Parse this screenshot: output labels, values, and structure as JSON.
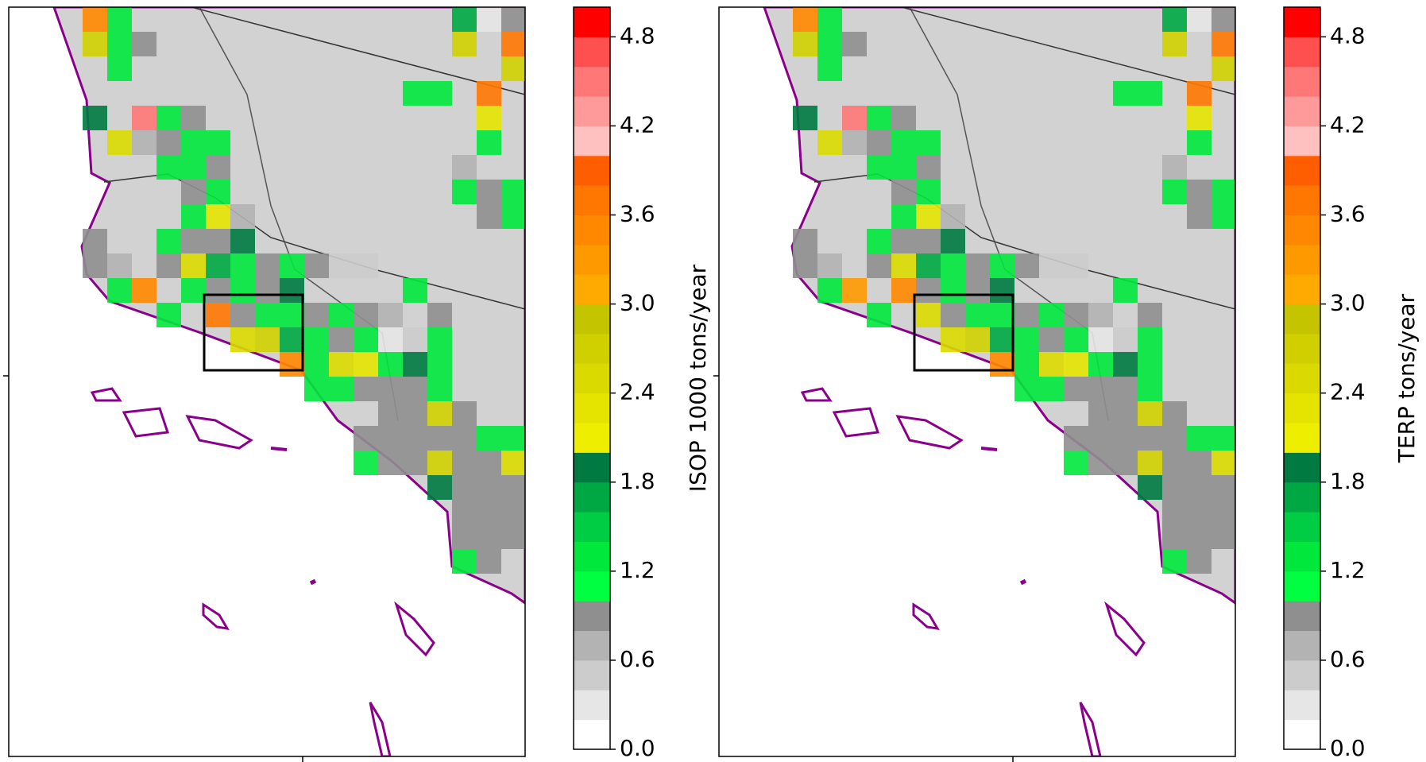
{
  "chart_data": [
    {
      "type": "map",
      "colorbar_label": "ISOP 1000 tons/year",
      "clim": [
        0,
        5
      ],
      "colormap": [
        "#ffffff",
        "#e6e6e6",
        "#cccccc",
        "#b3b3b3",
        "#8f8f8f",
        "#00ff40",
        "#00e83c",
        "#00cc44",
        "#00a844",
        "#007a40",
        "#eeee00",
        "#e4e400",
        "#dada00",
        "#d0d000",
        "#c4c400",
        "#ffaa00",
        "#ff9900",
        "#ff8800",
        "#ff7700",
        "#ff5e00",
        "#ffc0c0",
        "#ff9a9a",
        "#ff7777",
        "#ff5050",
        "#ff0000"
      ],
      "cticks": [
        {
          "value": 0,
          "label": "0.0"
        },
        0.6,
        1.2,
        1.8,
        2.4,
        {
          "value": 3,
          "label": "3.0"
        },
        3.6,
        4.2,
        4.8
      ],
      "cells": [
        [
          null,
          null,
          null,
          3.4,
          1.4,
          null,
          null,
          null,
          null,
          null,
          null,
          null,
          null,
          null,
          null,
          null,
          null,
          null,
          1.6,
          0.2,
          0.8
        ],
        [
          null,
          null,
          null,
          2.6,
          1.2,
          0.8,
          null,
          null,
          null,
          null,
          null,
          null,
          null,
          null,
          null,
          null,
          null,
          null,
          2.8,
          null,
          3.6
        ],
        [
          null,
          null,
          null,
          null,
          1.2,
          null,
          null,
          null,
          null,
          null,
          null,
          null,
          null,
          null,
          null,
          null,
          null,
          null,
          null,
          null,
          2.6
        ],
        [
          null,
          null,
          null,
          null,
          null,
          null,
          null,
          null,
          null,
          null,
          null,
          null,
          null,
          null,
          null,
          null,
          1.4,
          1.4,
          null,
          3.6,
          null
        ],
        [
          null,
          null,
          null,
          1.8,
          null,
          4.4,
          1.2,
          0.8,
          null,
          null,
          null,
          null,
          null,
          null,
          null,
          null,
          null,
          null,
          null,
          2.2,
          null
        ],
        [
          null,
          null,
          null,
          null,
          2.4,
          0.6,
          0.8,
          1.2,
          1.2,
          null,
          null,
          null,
          null,
          null,
          null,
          null,
          null,
          null,
          null,
          1.2,
          null
        ],
        [
          null,
          null,
          null,
          null,
          null,
          null,
          1.2,
          1.2,
          0.8,
          null,
          null,
          null,
          null,
          null,
          null,
          null,
          null,
          null,
          0.6,
          null,
          null
        ],
        [
          null,
          null,
          null,
          null,
          null,
          null,
          null,
          0.8,
          1.4,
          null,
          null,
          null,
          null,
          null,
          null,
          null,
          null,
          null,
          1.4,
          0.8,
          1.2
        ],
        [
          null,
          null,
          null,
          null,
          null,
          null,
          null,
          1.4,
          2.2,
          0.6,
          null,
          null,
          null,
          null,
          null,
          null,
          null,
          null,
          null,
          0.8,
          1.2
        ],
        [
          null,
          null,
          null,
          0.8,
          null,
          null,
          1.2,
          0.8,
          0.8,
          1.8,
          null,
          null,
          null,
          null,
          null,
          null,
          null,
          null,
          null,
          null,
          null
        ],
        [
          null,
          null,
          null,
          0.8,
          0.6,
          null,
          0.8,
          2.4,
          1.6,
          1.4,
          0.8,
          1.2,
          0.8,
          0.4,
          0.4,
          null,
          null,
          null,
          null,
          null,
          null
        ],
        [
          null,
          null,
          null,
          null,
          1.2,
          3.4,
          null,
          1.4,
          0.8,
          1.2,
          0.8,
          1.8,
          null,
          null,
          null,
          null,
          1.2,
          null,
          null,
          null,
          null
        ],
        [
          null,
          null,
          null,
          null,
          null,
          null,
          1.2,
          null,
          3.6,
          0.8,
          1.2,
          1.4,
          0.8,
          1.2,
          0.8,
          0.6,
          null,
          0.8,
          null,
          null,
          null
        ],
        [
          null,
          null,
          null,
          null,
          null,
          null,
          null,
          null,
          null,
          2.4,
          2.6,
          1.6,
          1.2,
          0.8,
          1.2,
          0.2,
          0.4,
          1.2,
          null,
          null,
          null
        ],
        [
          null,
          null,
          null,
          null,
          null,
          null,
          null,
          null,
          null,
          null,
          null,
          3.4,
          1.2,
          2.4,
          2.2,
          1.2,
          1.8,
          1.2,
          null,
          null,
          null
        ],
        [
          null,
          null,
          null,
          null,
          null,
          null,
          null,
          null,
          null,
          null,
          null,
          null,
          1.2,
          1.4,
          0.8,
          0.8,
          0.8,
          1.2,
          null,
          null,
          null
        ],
        [
          null,
          null,
          null,
          null,
          null,
          null,
          null,
          null,
          null,
          null,
          null,
          null,
          null,
          null,
          null,
          0.8,
          0.8,
          2.6,
          0.8,
          null,
          null
        ],
        [
          null,
          null,
          null,
          null,
          null,
          null,
          null,
          null,
          null,
          null,
          null,
          null,
          null,
          null,
          0.8,
          0.8,
          0.8,
          0.8,
          0.8,
          1.2,
          1.2
        ],
        [
          null,
          null,
          null,
          null,
          null,
          null,
          null,
          null,
          null,
          null,
          null,
          null,
          null,
          null,
          1.2,
          0.8,
          0.8,
          2.6,
          0.8,
          0.8,
          2.4
        ],
        [
          null,
          null,
          null,
          null,
          null,
          null,
          null,
          null,
          null,
          null,
          null,
          null,
          null,
          null,
          null,
          null,
          null,
          1.8,
          0.8,
          0.8,
          0.8
        ],
        [
          null,
          null,
          null,
          null,
          null,
          null,
          null,
          null,
          null,
          null,
          null,
          null,
          null,
          null,
          null,
          null,
          null,
          null,
          0.8,
          0.8,
          0.8
        ],
        [
          null,
          null,
          null,
          null,
          null,
          null,
          null,
          null,
          null,
          null,
          null,
          null,
          null,
          null,
          null,
          null,
          null,
          null,
          0.8,
          0.8,
          0.8
        ],
        [
          null,
          null,
          null,
          null,
          null,
          null,
          null,
          null,
          null,
          null,
          null,
          null,
          null,
          null,
          null,
          null,
          null,
          null,
          1.4,
          0.8,
          null
        ]
      ]
    },
    {
      "type": "map",
      "colorbar_label": "TERP tons/year",
      "clim": [
        0,
        5
      ],
      "colormap": [
        "#ffffff",
        "#e6e6e6",
        "#cccccc",
        "#b3b3b3",
        "#8f8f8f",
        "#00ff40",
        "#00e83c",
        "#00cc44",
        "#00a844",
        "#007a40",
        "#eeee00",
        "#e4e400",
        "#dada00",
        "#d0d000",
        "#c4c400",
        "#ffaa00",
        "#ff9900",
        "#ff8800",
        "#ff7700",
        "#ff5e00",
        "#ffc0c0",
        "#ff9a9a",
        "#ff7777",
        "#ff5050",
        "#ff0000"
      ],
      "cticks": [
        {
          "value": 0,
          "label": "0.0"
        },
        0.6,
        1.2,
        1.8,
        2.4,
        {
          "value": 3,
          "label": "3.0"
        },
        3.6,
        4.2,
        4.8
      ],
      "cells": [
        [
          null,
          null,
          null,
          3.4,
          1.4,
          null,
          null,
          null,
          null,
          null,
          null,
          null,
          null,
          null,
          null,
          null,
          null,
          null,
          1.6,
          0.2,
          0.8
        ],
        [
          null,
          null,
          null,
          2.6,
          1.2,
          0.8,
          null,
          null,
          null,
          null,
          null,
          null,
          null,
          null,
          null,
          null,
          null,
          null,
          2.8,
          null,
          3.6
        ],
        [
          null,
          null,
          null,
          null,
          1.2,
          null,
          null,
          null,
          null,
          null,
          null,
          null,
          null,
          null,
          null,
          null,
          null,
          null,
          null,
          null,
          2.6
        ],
        [
          null,
          null,
          null,
          null,
          null,
          null,
          null,
          null,
          null,
          null,
          null,
          null,
          null,
          null,
          null,
          null,
          1.4,
          1.4,
          null,
          3.6,
          null
        ],
        [
          null,
          null,
          null,
          1.8,
          null,
          4.4,
          1.2,
          0.8,
          null,
          null,
          null,
          null,
          null,
          null,
          null,
          null,
          null,
          null,
          null,
          2.2,
          null
        ],
        [
          null,
          null,
          null,
          null,
          2.4,
          0.6,
          0.8,
          1.2,
          1.2,
          null,
          null,
          null,
          null,
          null,
          null,
          null,
          null,
          null,
          null,
          1.2,
          null
        ],
        [
          null,
          null,
          null,
          null,
          null,
          null,
          1.2,
          1.2,
          0.8,
          null,
          null,
          null,
          null,
          null,
          null,
          null,
          null,
          null,
          0.6,
          null,
          null
        ],
        [
          null,
          null,
          null,
          null,
          null,
          null,
          null,
          0.8,
          1.4,
          null,
          null,
          null,
          null,
          null,
          null,
          null,
          null,
          null,
          1.4,
          0.8,
          1.2
        ],
        [
          null,
          null,
          null,
          null,
          null,
          null,
          null,
          1.4,
          2.2,
          0.6,
          null,
          null,
          null,
          null,
          null,
          null,
          null,
          null,
          null,
          0.8,
          1.2
        ],
        [
          null,
          null,
          null,
          0.8,
          null,
          null,
          1.2,
          0.8,
          0.8,
          1.8,
          null,
          null,
          null,
          null,
          null,
          null,
          null,
          null,
          null,
          null,
          null
        ],
        [
          null,
          null,
          null,
          0.8,
          0.6,
          null,
          0.8,
          2.4,
          1.6,
          1.4,
          0.8,
          1.2,
          0.8,
          0.4,
          0.4,
          null,
          null,
          null,
          null,
          null,
          null
        ],
        [
          null,
          null,
          null,
          null,
          1.2,
          3.2,
          null,
          3.4,
          0.8,
          1.2,
          0.8,
          1.8,
          null,
          null,
          null,
          null,
          1.2,
          null,
          null,
          null,
          null
        ],
        [
          null,
          null,
          null,
          null,
          null,
          null,
          1.2,
          null,
          2.4,
          0.8,
          1.2,
          1.4,
          0.8,
          1.2,
          0.8,
          0.6,
          null,
          0.8,
          null,
          null,
          null
        ],
        [
          null,
          null,
          null,
          null,
          null,
          null,
          null,
          null,
          null,
          2.4,
          2.6,
          1.6,
          1.2,
          0.8,
          1.2,
          0.2,
          0.4,
          1.2,
          null,
          null,
          null
        ],
        [
          null,
          null,
          null,
          null,
          null,
          null,
          null,
          null,
          null,
          null,
          null,
          3.4,
          1.2,
          2.4,
          2.2,
          1.2,
          1.8,
          1.2,
          null,
          null,
          null
        ],
        [
          null,
          null,
          null,
          null,
          null,
          null,
          null,
          null,
          null,
          null,
          null,
          null,
          1.2,
          1.4,
          0.8,
          0.8,
          0.8,
          1.2,
          null,
          null,
          null
        ],
        [
          null,
          null,
          null,
          null,
          null,
          null,
          null,
          null,
          null,
          null,
          null,
          null,
          null,
          null,
          null,
          0.8,
          0.8,
          2.6,
          0.8,
          null,
          null
        ],
        [
          null,
          null,
          null,
          null,
          null,
          null,
          null,
          null,
          null,
          null,
          null,
          null,
          null,
          null,
          0.8,
          0.8,
          0.8,
          0.8,
          0.8,
          1.2,
          1.2
        ],
        [
          null,
          null,
          null,
          null,
          null,
          null,
          null,
          null,
          null,
          null,
          null,
          null,
          null,
          null,
          1.2,
          0.8,
          0.8,
          2.6,
          0.8,
          0.8,
          2.4
        ],
        [
          null,
          null,
          null,
          null,
          null,
          null,
          null,
          null,
          null,
          null,
          null,
          null,
          null,
          null,
          null,
          null,
          null,
          1.8,
          0.8,
          0.8,
          0.8
        ],
        [
          null,
          null,
          null,
          null,
          null,
          null,
          null,
          null,
          null,
          null,
          null,
          null,
          null,
          null,
          null,
          null,
          null,
          null,
          0.8,
          0.8,
          0.8
        ],
        [
          null,
          null,
          null,
          null,
          null,
          null,
          null,
          null,
          null,
          null,
          null,
          null,
          null,
          null,
          null,
          null,
          null,
          null,
          0.8,
          0.8,
          0.8
        ],
        [
          null,
          null,
          null,
          null,
          null,
          null,
          null,
          null,
          null,
          null,
          null,
          null,
          null,
          null,
          null,
          null,
          null,
          null,
          1.4,
          0.8,
          null
        ]
      ]
    }
  ]
}
